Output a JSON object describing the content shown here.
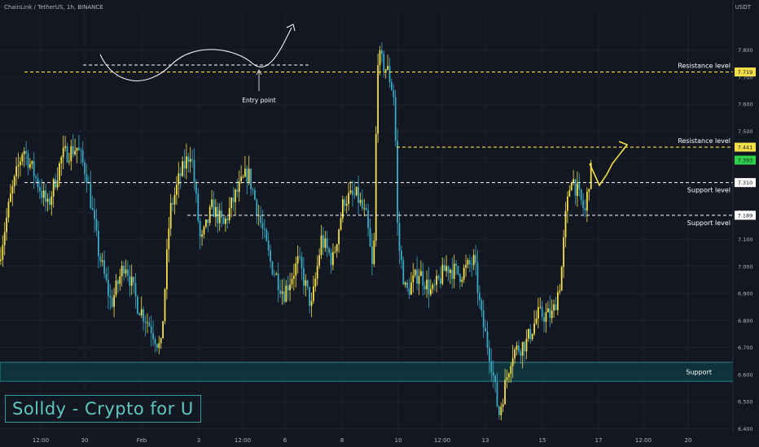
{
  "header": {
    "symbol_line": "ChainLink / TetherUS, 1h, BINANCE",
    "currency": "USDT"
  },
  "branding": {
    "watermark": "Solldy - Crypto for U"
  },
  "annotations": {
    "entry_label": "Entry point"
  },
  "colors": {
    "background": "#131722",
    "bull": "#f5e04a",
    "bear": "#3aa9c4",
    "resistance": "#f5e04a",
    "support": "#ffffff",
    "zone_fill": "#0f3e44",
    "zone_border": "#2f9e98"
  },
  "chart_data": {
    "type": "candlestick",
    "title": "",
    "x_tick_labels": [
      "12:00",
      "30",
      "Feb",
      "3",
      "12:00",
      "6",
      "8",
      "10",
      "12:00",
      "13",
      "15",
      "17",
      "12:00",
      "20"
    ],
    "y_tick_labels": [
      "7.800",
      "7.700",
      "7.600",
      "7.500",
      "7.400",
      "7.300",
      "7.200",
      "7.100",
      "7.000",
      "6.900",
      "6.800",
      "6.700",
      "6.600",
      "6.500",
      "6.400"
    ],
    "ylim": [
      6.392,
      7.844
    ],
    "levels": [
      {
        "label": "Resistance level",
        "price_label": "7.719",
        "value": 7.719,
        "kind": "resistance"
      },
      {
        "label": "Resistance level",
        "price_label": "7.441",
        "value": 7.441,
        "kind": "resistance"
      },
      {
        "label": "Support level",
        "price_label": "7.310",
        "value": 7.31,
        "kind": "support"
      },
      {
        "label": "Support level",
        "price_label": "7.189",
        "value": 7.189,
        "kind": "support"
      }
    ],
    "current_price": {
      "label": "7.393",
      "value": 7.393
    },
    "zones": [
      {
        "label": "Support",
        "low": 6.575,
        "high": 6.645
      }
    ],
    "projection": [
      [
        7.38,
        7.43
      ],
      [
        7.3,
        7.29
      ],
      [
        7.34,
        7.33
      ],
      [
        7.38,
        7.43
      ],
      [
        7.45,
        7.42
      ]
    ],
    "series": [
      {
        "name": "",
        "key_points": [
          [
            0,
            7.02
          ],
          [
            14,
            7.25
          ],
          [
            30,
            7.44
          ],
          [
            45,
            7.33
          ],
          [
            60,
            7.22
          ],
          [
            78,
            7.41
          ],
          [
            96,
            7.44
          ],
          [
            108,
            7.34
          ],
          [
            122,
            7.06
          ],
          [
            138,
            6.86
          ],
          [
            155,
            7.02
          ],
          [
            170,
            6.86
          ],
          [
            186,
            6.78
          ],
          [
            199,
            6.69
          ],
          [
            210,
            7.2
          ],
          [
            222,
            7.33
          ],
          [
            236,
            7.43
          ],
          [
            248,
            7.08
          ],
          [
            262,
            7.22
          ],
          [
            276,
            7.15
          ],
          [
            290,
            7.26
          ],
          [
            306,
            7.35
          ],
          [
            320,
            7.18
          ],
          [
            334,
            7.01
          ],
          [
            350,
            6.9
          ],
          [
            368,
            7.02
          ],
          [
            384,
            6.85
          ],
          [
            396,
            7.1
          ],
          [
            410,
            7.02
          ],
          [
            424,
            7.25
          ],
          [
            440,
            7.26
          ],
          [
            452,
            7.17
          ],
          [
            460,
            6.95
          ],
          [
            465,
            7.78
          ],
          [
            478,
            7.72
          ],
          [
            486,
            7.62
          ],
          [
            490,
            7.1
          ],
          [
            500,
            6.9
          ],
          [
            516,
            6.98
          ],
          [
            532,
            6.9
          ],
          [
            550,
            7.0
          ],
          [
            566,
            6.97
          ],
          [
            584,
            7.02
          ],
          [
            592,
            6.82
          ],
          [
            604,
            6.66
          ],
          [
            614,
            6.45
          ],
          [
            630,
            6.68
          ],
          [
            648,
            6.72
          ],
          [
            662,
            6.82
          ],
          [
            680,
            6.82
          ],
          [
            690,
            6.95
          ],
          [
            696,
            7.18
          ],
          [
            703,
            7.34
          ],
          [
            712,
            7.26
          ],
          [
            720,
            7.2
          ],
          [
            726,
            7.35
          ]
        ]
      }
    ]
  }
}
